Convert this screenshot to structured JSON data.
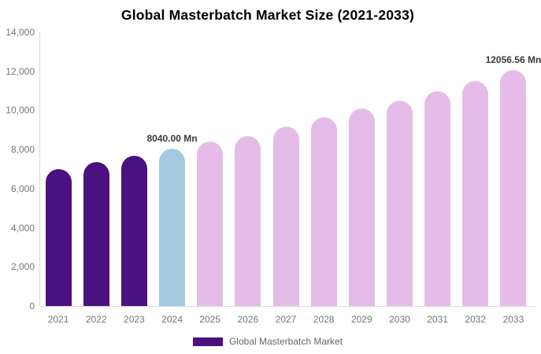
{
  "chart_data": {
    "type": "bar",
    "title": "Global Masterbatch Market Size (2021-2033)",
    "categories": [
      "2021",
      "2022",
      "2023",
      "2024",
      "2025",
      "2026",
      "2027",
      "2028",
      "2029",
      "2030",
      "2031",
      "2032",
      "2033"
    ],
    "values": [
      7010,
      7360,
      7680,
      8040,
      8410,
      8700,
      9170,
      9640,
      10090,
      10520,
      10980,
      11490,
      12056.56
    ],
    "value_unit": "Mn",
    "ylim": [
      0,
      14000
    ],
    "y_tick_step": 2000,
    "y_tick_labels": [
      "0",
      "2,000",
      "4,000",
      "6,000",
      "8,000",
      "10,000",
      "12,000",
      "14,000"
    ],
    "grid": "off",
    "legend_position": "bottom-center",
    "bar_colors": [
      "#4A1181",
      "#4A1181",
      "#4A1181",
      "#A2C9DF",
      "#E5BCE8",
      "#E5BCE8",
      "#E5BCE8",
      "#E5BCE8",
      "#E5BCE8",
      "#E5BCE8",
      "#E5BCE8",
      "#E5BCE8",
      "#E5BCE8"
    ],
    "annotations": [
      {
        "category": "2024",
        "text": "8040.00 Mn"
      },
      {
        "category": "2033",
        "text": "12056.56 Mn"
      }
    ],
    "legend": {
      "label": "Global Masterbatch Market",
      "swatch_color": "#4A1181"
    },
    "colors": {
      "historical_bar": "#4A1181",
      "base_year_bar": "#A2C9DF",
      "forecast_bar": "#E5BCE8",
      "axis_text": "#757575",
      "annotation_text": "#3a3a3a",
      "axis_line": "#d9d9d9",
      "title_text": "#000000"
    }
  }
}
